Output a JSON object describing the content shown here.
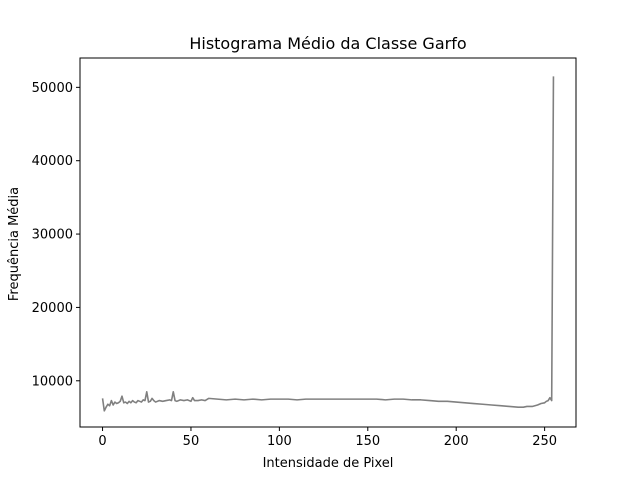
{
  "chart_data": {
    "type": "line",
    "title": "Histograma Médio da Classe Garfo",
    "xlabel": "Intensidade de Pixel",
    "ylabel": "Frequência Média",
    "xlim": [
      -12.75,
      267.75
    ],
    "ylim": [
      3700,
      54000
    ],
    "xticks": [
      0,
      50,
      100,
      150,
      200,
      250
    ],
    "yticks": [
      10000,
      20000,
      30000,
      40000,
      50000
    ],
    "grid": false,
    "legend": "none",
    "series": [
      {
        "color": "#808080",
        "x": [
          0,
          1,
          2,
          3,
          4,
          5,
          6,
          7,
          8,
          9,
          10,
          11,
          12,
          13,
          14,
          15,
          16,
          17,
          18,
          19,
          20,
          21,
          22,
          23,
          24,
          25,
          26,
          27,
          28,
          29,
          30,
          32,
          34,
          36,
          38,
          39,
          40,
          41,
          42,
          44,
          46,
          48,
          50,
          51,
          52,
          54,
          56,
          58,
          60,
          65,
          70,
          75,
          80,
          85,
          90,
          95,
          100,
          105,
          110,
          115,
          120,
          125,
          130,
          135,
          140,
          145,
          150,
          155,
          160,
          165,
          170,
          175,
          180,
          185,
          190,
          195,
          200,
          205,
          210,
          215,
          220,
          225,
          230,
          235,
          238,
          240,
          243,
          246,
          248,
          250,
          251,
          252,
          253,
          254,
          255
        ],
        "y": [
          7600,
          5900,
          6400,
          6800,
          6600,
          7300,
          6700,
          7100,
          6900,
          7000,
          7200,
          7900,
          7000,
          7100,
          6900,
          7200,
          7000,
          7300,
          7100,
          7000,
          7300,
          7200,
          7100,
          7400,
          7300,
          8500,
          7100,
          7200,
          7600,
          7300,
          7100,
          7300,
          7200,
          7300,
          7400,
          7300,
          8500,
          7300,
          7200,
          7400,
          7300,
          7400,
          7200,
          7700,
          7300,
          7300,
          7400,
          7300,
          7600,
          7500,
          7400,
          7500,
          7400,
          7500,
          7400,
          7500,
          7500,
          7500,
          7400,
          7500,
          7500,
          7500,
          7500,
          7500,
          7500,
          7500,
          7500,
          7500,
          7400,
          7500,
          7500,
          7400,
          7400,
          7300,
          7200,
          7200,
          7100,
          7000,
          6900,
          6800,
          6700,
          6600,
          6500,
          6400,
          6400,
          6500,
          6500,
          6700,
          6900,
          7000,
          7200,
          7300,
          7700,
          7300,
          51500
        ]
      }
    ]
  }
}
